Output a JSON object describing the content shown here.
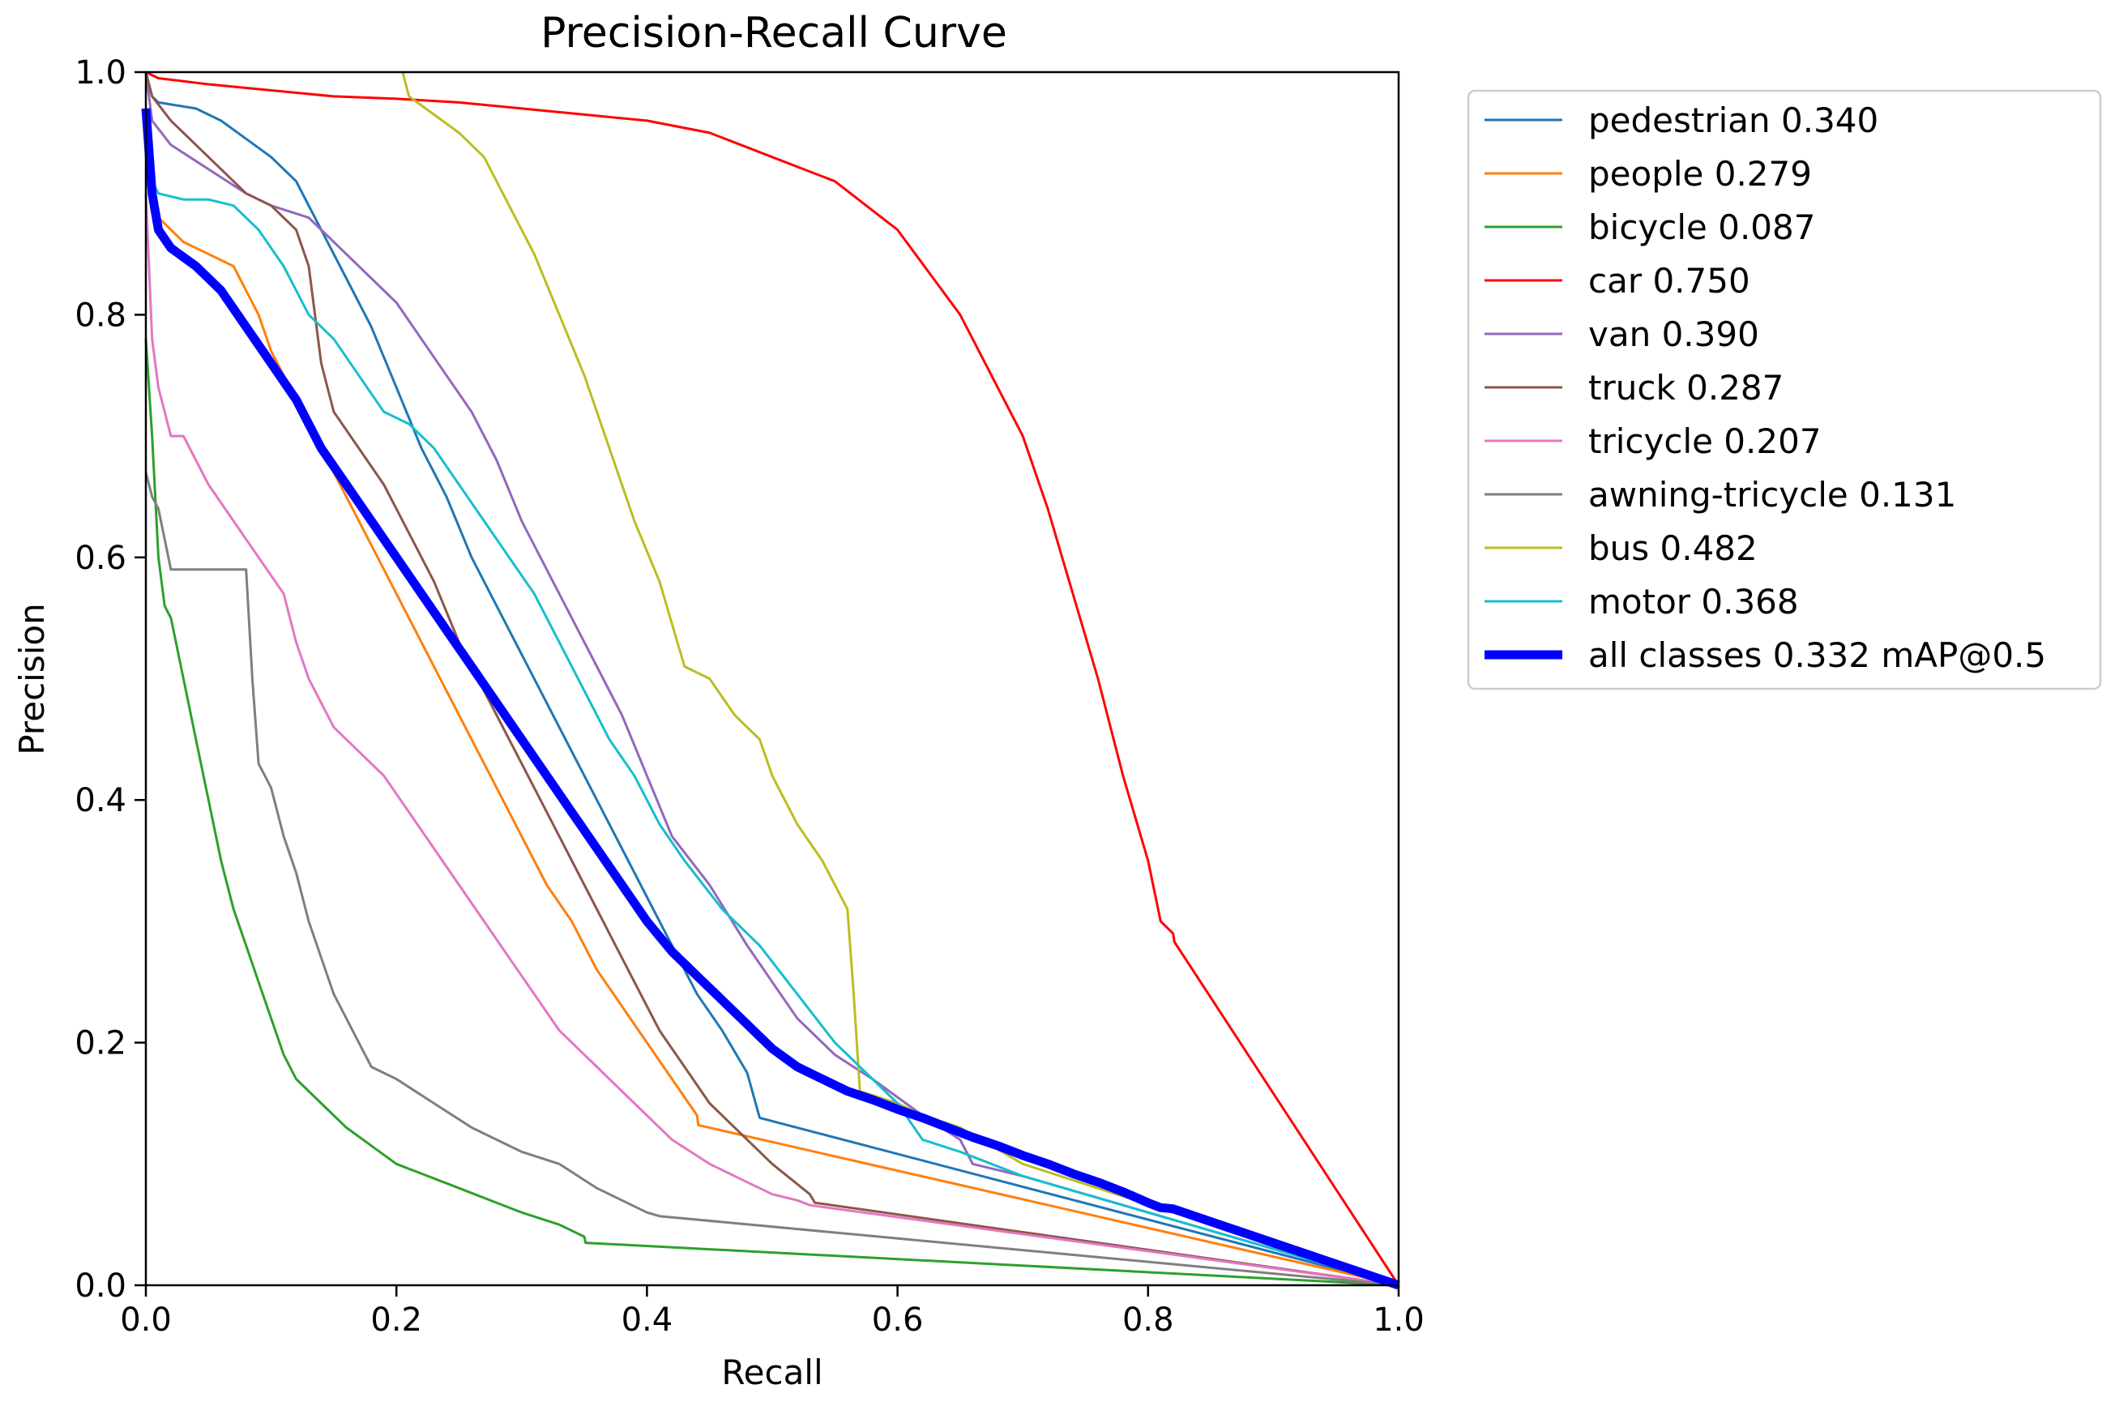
{
  "chart_data": {
    "type": "line",
    "title": "Precision-Recall Curve",
    "xlabel": "Recall",
    "ylabel": "Precision",
    "xlim": [
      0.0,
      1.0
    ],
    "ylim": [
      0.0,
      1.0
    ],
    "xticks": [
      "0.0",
      "0.2",
      "0.4",
      "0.6",
      "0.8",
      "1.0"
    ],
    "yticks": [
      "0.0",
      "0.2",
      "0.4",
      "0.6",
      "0.8",
      "1.0"
    ],
    "grid": false,
    "legend_position": "outside-top-right",
    "series": [
      {
        "name": "pedestrian",
        "label": "pedestrian 0.340",
        "color": "#1f77b4",
        "x": [
          0.0,
          0.005,
          0.01,
          0.04,
          0.06,
          0.08,
          0.1,
          0.12,
          0.14,
          0.16,
          0.18,
          0.2,
          0.22,
          0.24,
          0.26,
          0.28,
          0.3,
          0.32,
          0.34,
          0.36,
          0.38,
          0.4,
          0.42,
          0.44,
          0.46,
          0.48,
          0.49,
          1.0
        ],
        "y": [
          1.0,
          0.98,
          0.975,
          0.97,
          0.96,
          0.945,
          0.93,
          0.91,
          0.87,
          0.83,
          0.79,
          0.74,
          0.69,
          0.65,
          0.6,
          0.56,
          0.52,
          0.48,
          0.44,
          0.4,
          0.36,
          0.32,
          0.28,
          0.24,
          0.21,
          0.175,
          0.138,
          0.0
        ]
      },
      {
        "name": "people",
        "label": "people 0.279",
        "color": "#ff7f0e",
        "x": [
          0.0,
          0.01,
          0.03,
          0.05,
          0.07,
          0.08,
          0.09,
          0.1,
          0.12,
          0.14,
          0.16,
          0.18,
          0.2,
          0.22,
          0.24,
          0.26,
          0.28,
          0.3,
          0.32,
          0.34,
          0.36,
          0.38,
          0.4,
          0.42,
          0.44,
          0.441,
          1.0
        ],
        "y": [
          0.92,
          0.88,
          0.86,
          0.85,
          0.84,
          0.82,
          0.8,
          0.77,
          0.73,
          0.69,
          0.65,
          0.61,
          0.57,
          0.53,
          0.49,
          0.45,
          0.41,
          0.37,
          0.33,
          0.3,
          0.26,
          0.23,
          0.2,
          0.17,
          0.14,
          0.132,
          0.0
        ]
      },
      {
        "name": "bicycle",
        "label": "bicycle 0.087",
        "color": "#2ca02c",
        "x": [
          0.0,
          0.005,
          0.01,
          0.015,
          0.02,
          0.03,
          0.04,
          0.05,
          0.06,
          0.07,
          0.08,
          0.09,
          0.1,
          0.11,
          0.12,
          0.14,
          0.16,
          0.2,
          0.25,
          0.3,
          0.33,
          0.35,
          0.351,
          1.0
        ],
        "y": [
          0.78,
          0.7,
          0.6,
          0.56,
          0.55,
          0.5,
          0.45,
          0.4,
          0.35,
          0.31,
          0.28,
          0.25,
          0.22,
          0.19,
          0.17,
          0.15,
          0.13,
          0.1,
          0.08,
          0.06,
          0.05,
          0.04,
          0.035,
          0.0
        ]
      },
      {
        "name": "car",
        "label": "car 0.750",
        "color": "#ff0000",
        "x": [
          0.0,
          0.01,
          0.05,
          0.1,
          0.15,
          0.2,
          0.25,
          0.3,
          0.35,
          0.4,
          0.45,
          0.5,
          0.55,
          0.6,
          0.65,
          0.7,
          0.72,
          0.74,
          0.76,
          0.78,
          0.8,
          0.81,
          0.82,
          0.821,
          1.0
        ],
        "y": [
          1.0,
          0.995,
          0.99,
          0.985,
          0.98,
          0.978,
          0.975,
          0.97,
          0.965,
          0.96,
          0.95,
          0.93,
          0.91,
          0.87,
          0.8,
          0.7,
          0.64,
          0.57,
          0.5,
          0.42,
          0.35,
          0.3,
          0.29,
          0.283,
          0.0
        ]
      },
      {
        "name": "van",
        "label": "van 0.390",
        "color": "#9467bd",
        "x": [
          0.0,
          0.005,
          0.02,
          0.05,
          0.08,
          0.1,
          0.13,
          0.15,
          0.18,
          0.2,
          0.22,
          0.24,
          0.26,
          0.28,
          0.3,
          0.32,
          0.34,
          0.36,
          0.38,
          0.4,
          0.42,
          0.45,
          0.48,
          0.5,
          0.52,
          0.55,
          0.58,
          0.6,
          0.62,
          0.65,
          0.66,
          0.7,
          1.0
        ],
        "y": [
          1.0,
          0.96,
          0.94,
          0.92,
          0.9,
          0.89,
          0.88,
          0.86,
          0.83,
          0.81,
          0.78,
          0.75,
          0.72,
          0.68,
          0.63,
          0.59,
          0.55,
          0.51,
          0.47,
          0.42,
          0.37,
          0.33,
          0.28,
          0.25,
          0.22,
          0.19,
          0.17,
          0.155,
          0.14,
          0.12,
          0.1,
          0.09,
          0.0
        ]
      },
      {
        "name": "truck",
        "label": "truck 0.287",
        "color": "#8c564b",
        "x": [
          0.0,
          0.005,
          0.02,
          0.04,
          0.06,
          0.08,
          0.1,
          0.12,
          0.13,
          0.14,
          0.15,
          0.17,
          0.19,
          0.21,
          0.23,
          0.25,
          0.27,
          0.29,
          0.31,
          0.33,
          0.35,
          0.37,
          0.39,
          0.41,
          0.43,
          0.45,
          0.47,
          0.5,
          0.53,
          0.534,
          1.0
        ],
        "y": [
          1.0,
          0.98,
          0.96,
          0.94,
          0.92,
          0.9,
          0.89,
          0.87,
          0.84,
          0.76,
          0.72,
          0.69,
          0.66,
          0.62,
          0.58,
          0.53,
          0.49,
          0.45,
          0.41,
          0.37,
          0.33,
          0.29,
          0.25,
          0.21,
          0.18,
          0.15,
          0.13,
          0.1,
          0.075,
          0.068,
          0.0
        ]
      },
      {
        "name": "tricycle",
        "label": "tricycle 0.207",
        "color": "#e377c2",
        "x": [
          0.0,
          0.005,
          0.01,
          0.02,
          0.03,
          0.05,
          0.07,
          0.09,
          0.11,
          0.12,
          0.13,
          0.14,
          0.15,
          0.17,
          0.19,
          0.21,
          0.23,
          0.25,
          0.27,
          0.29,
          0.31,
          0.33,
          0.36,
          0.39,
          0.42,
          0.45,
          0.48,
          0.5,
          0.52,
          0.53,
          1.0
        ],
        "y": [
          0.9,
          0.78,
          0.74,
          0.7,
          0.7,
          0.66,
          0.63,
          0.6,
          0.57,
          0.53,
          0.5,
          0.48,
          0.46,
          0.44,
          0.42,
          0.39,
          0.36,
          0.33,
          0.3,
          0.27,
          0.24,
          0.21,
          0.18,
          0.15,
          0.12,
          0.1,
          0.085,
          0.075,
          0.07,
          0.066,
          0.0
        ]
      },
      {
        "name": "awning-tricycle",
        "label": "awning-tricycle 0.131",
        "color": "#7f7f7f",
        "x": [
          0.0,
          0.005,
          0.01,
          0.02,
          0.04,
          0.06,
          0.08,
          0.085,
          0.09,
          0.1,
          0.11,
          0.12,
          0.13,
          0.14,
          0.15,
          0.16,
          0.17,
          0.18,
          0.2,
          0.23,
          0.26,
          0.3,
          0.33,
          0.36,
          0.38,
          0.4,
          0.41,
          1.0
        ],
        "y": [
          0.67,
          0.65,
          0.64,
          0.59,
          0.59,
          0.59,
          0.59,
          0.5,
          0.43,
          0.41,
          0.37,
          0.34,
          0.3,
          0.27,
          0.24,
          0.22,
          0.2,
          0.18,
          0.17,
          0.15,
          0.13,
          0.11,
          0.1,
          0.08,
          0.07,
          0.06,
          0.057,
          0.0
        ]
      },
      {
        "name": "bus",
        "label": "bus 0.482",
        "color": "#bcbd22",
        "x": [
          0.205,
          0.21,
          0.23,
          0.25,
          0.27,
          0.29,
          0.31,
          0.33,
          0.35,
          0.37,
          0.39,
          0.41,
          0.43,
          0.45,
          0.47,
          0.49,
          0.5,
          0.52,
          0.54,
          0.56,
          0.565,
          0.57,
          0.6,
          0.62,
          0.65,
          0.7,
          1.0
        ],
        "y": [
          1.0,
          0.98,
          0.965,
          0.95,
          0.93,
          0.89,
          0.85,
          0.8,
          0.75,
          0.69,
          0.63,
          0.58,
          0.51,
          0.5,
          0.47,
          0.45,
          0.42,
          0.38,
          0.35,
          0.31,
          0.24,
          0.16,
          0.15,
          0.14,
          0.13,
          0.1,
          0.0
        ]
      },
      {
        "name": "motor",
        "label": "motor 0.368",
        "color": "#17becf",
        "x": [
          0.0,
          0.005,
          0.01,
          0.03,
          0.05,
          0.07,
          0.09,
          0.11,
          0.13,
          0.15,
          0.17,
          0.19,
          0.21,
          0.23,
          0.25,
          0.27,
          0.29,
          0.31,
          0.33,
          0.35,
          0.37,
          0.39,
          0.41,
          0.43,
          0.46,
          0.49,
          0.52,
          0.55,
          0.58,
          0.6,
          0.62,
          0.65,
          0.7,
          1.0
        ],
        "y": [
          0.95,
          0.91,
          0.9,
          0.895,
          0.895,
          0.89,
          0.87,
          0.84,
          0.8,
          0.78,
          0.75,
          0.72,
          0.71,
          0.69,
          0.66,
          0.63,
          0.6,
          0.57,
          0.53,
          0.49,
          0.45,
          0.42,
          0.38,
          0.35,
          0.31,
          0.28,
          0.24,
          0.2,
          0.17,
          0.15,
          0.12,
          0.11,
          0.09,
          0.0
        ]
      },
      {
        "name": "all classes",
        "label": "all classes 0.332 mAP@0.5",
        "color": "#0000ff",
        "thick": true,
        "x": [
          0.0,
          0.005,
          0.01,
          0.02,
          0.04,
          0.06,
          0.08,
          0.1,
          0.12,
          0.14,
          0.16,
          0.18,
          0.2,
          0.22,
          0.24,
          0.26,
          0.28,
          0.3,
          0.32,
          0.34,
          0.36,
          0.38,
          0.4,
          0.42,
          0.44,
          0.46,
          0.48,
          0.5,
          0.52,
          0.54,
          0.56,
          0.58,
          0.6,
          0.62,
          0.64,
          0.66,
          0.68,
          0.7,
          0.72,
          0.74,
          0.76,
          0.78,
          0.8,
          0.81,
          0.82,
          1.0
        ],
        "y": [
          0.97,
          0.9,
          0.87,
          0.855,
          0.84,
          0.82,
          0.79,
          0.76,
          0.73,
          0.69,
          0.66,
          0.63,
          0.6,
          0.57,
          0.54,
          0.51,
          0.48,
          0.45,
          0.42,
          0.39,
          0.36,
          0.33,
          0.3,
          0.275,
          0.255,
          0.235,
          0.215,
          0.195,
          0.18,
          0.17,
          0.16,
          0.153,
          0.145,
          0.138,
          0.13,
          0.122,
          0.115,
          0.107,
          0.1,
          0.092,
          0.085,
          0.077,
          0.068,
          0.064,
          0.063,
          0.0
        ]
      }
    ]
  }
}
